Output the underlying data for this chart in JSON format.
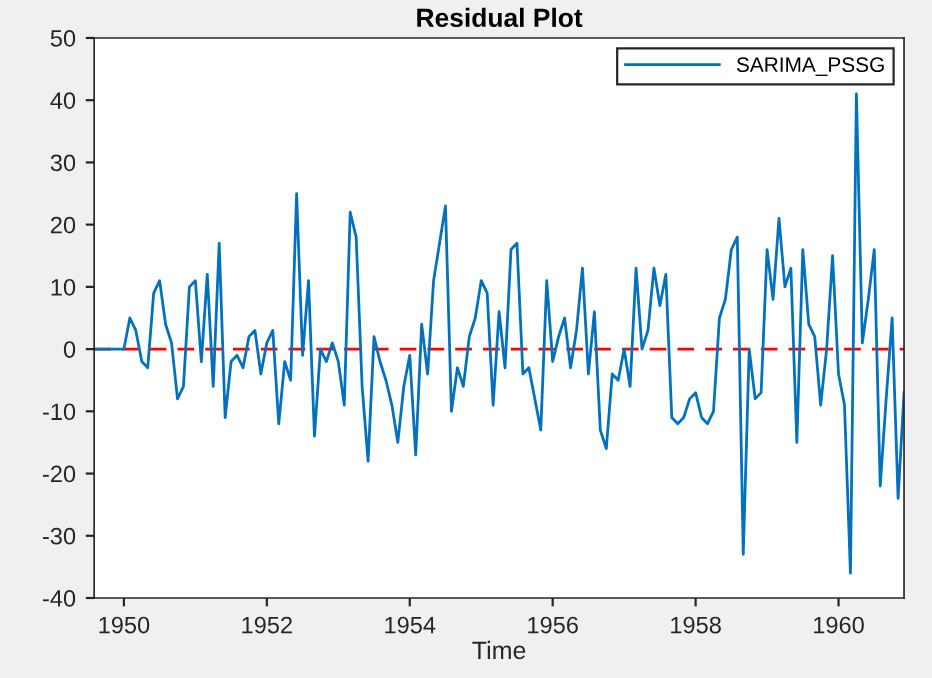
{
  "chart_data": {
    "type": "line",
    "title": "Residual Plot",
    "xlabel": "Time",
    "x": [
      "1949-08",
      "1949-09",
      "1949-10",
      "1949-11",
      "1949-12",
      "1950-01",
      "1950-02",
      "1950-03",
      "1950-04",
      "1950-05",
      "1950-06",
      "1950-07",
      "1950-08",
      "1950-09",
      "1950-10",
      "1950-11",
      "1950-12",
      "1951-01",
      "1951-02",
      "1951-03",
      "1951-04",
      "1951-05",
      "1951-06",
      "1951-07",
      "1951-08",
      "1951-09",
      "1951-10",
      "1951-11",
      "1951-12",
      "1952-01",
      "1952-02",
      "1952-03",
      "1952-04",
      "1952-05",
      "1952-06",
      "1952-07",
      "1952-08",
      "1952-09",
      "1952-10",
      "1952-11",
      "1952-12",
      "1953-01",
      "1953-02",
      "1953-03",
      "1953-04",
      "1953-05",
      "1953-06",
      "1953-07",
      "1953-08",
      "1953-09",
      "1953-10",
      "1953-11",
      "1953-12",
      "1954-01",
      "1954-02",
      "1954-03",
      "1954-04",
      "1954-05",
      "1954-06",
      "1954-07",
      "1954-08",
      "1954-09",
      "1954-10",
      "1954-11",
      "1954-12",
      "1955-01",
      "1955-02",
      "1955-03",
      "1955-04",
      "1955-05",
      "1955-06",
      "1955-07",
      "1955-08",
      "1955-09",
      "1955-10",
      "1955-11",
      "1955-12",
      "1956-01",
      "1956-02",
      "1956-03",
      "1956-04",
      "1956-05",
      "1956-06",
      "1956-07",
      "1956-08",
      "1956-09",
      "1956-10",
      "1956-11",
      "1956-12",
      "1957-01",
      "1957-02",
      "1957-03",
      "1957-04",
      "1957-05",
      "1957-06",
      "1957-07",
      "1957-08",
      "1957-09",
      "1957-10",
      "1957-11",
      "1957-12",
      "1958-01",
      "1958-02",
      "1958-03",
      "1958-04",
      "1958-05",
      "1958-06",
      "1958-07",
      "1958-08",
      "1958-09",
      "1958-10",
      "1958-11",
      "1958-12",
      "1959-01",
      "1959-02",
      "1959-03",
      "1959-04",
      "1959-05",
      "1959-06",
      "1959-07",
      "1959-08",
      "1959-09",
      "1959-10",
      "1959-11",
      "1959-12",
      "1960-01",
      "1960-02",
      "1960-03",
      "1960-04",
      "1960-05",
      "1960-06",
      "1960-07",
      "1960-08",
      "1960-09",
      "1960-10",
      "1960-11",
      "1960-12"
    ],
    "series": [
      {
        "name": "SARIMA_PSSG",
        "color": "#0072bd",
        "values": [
          0,
          0,
          0,
          0,
          0,
          0,
          5,
          3,
          -2,
          -3,
          9,
          11,
          4,
          1,
          -8,
          -6,
          10,
          11,
          -2,
          12,
          -6,
          17,
          -11,
          -2,
          -1,
          -3,
          2,
          3,
          -4,
          1,
          3,
          -12,
          -2,
          -5,
          25,
          -1,
          11,
          -14,
          0,
          -2,
          1,
          -2,
          -9,
          22,
          18,
          -6,
          -18,
          2,
          -2,
          -5,
          -9,
          -15,
          -6,
          -1,
          -17,
          4,
          -4,
          11,
          17,
          23,
          -10,
          -3,
          -6,
          2,
          5,
          11,
          9,
          -9,
          6,
          -3,
          16,
          17,
          -4,
          -3,
          -8,
          -13,
          11,
          -2,
          2,
          5,
          -3,
          3,
          13,
          -4,
          6,
          -13,
          -16,
          -4,
          -5,
          0,
          -6,
          13,
          0,
          3,
          13,
          7,
          12,
          -11,
          -12,
          -11,
          -8,
          -7,
          -11,
          -12,
          -10,
          5,
          8,
          16,
          18,
          -33,
          0,
          -8,
          -7,
          16,
          8,
          21,
          10,
          13,
          -15,
          16,
          4,
          2,
          -9,
          0,
          15,
          -4,
          -9,
          -36,
          41,
          1,
          8,
          16,
          -22,
          -8,
          5,
          -24,
          -7
        ]
      }
    ],
    "xlim": [
      "1949-08",
      "1960-12"
    ],
    "xticks": [
      "1950",
      "1952",
      "1954",
      "1956",
      "1958",
      "1960"
    ],
    "ylim": [
      -40,
      50
    ],
    "yticks": [
      -40,
      -30,
      -20,
      -10,
      0,
      10,
      20,
      30,
      40,
      50
    ],
    "ref_lines": [
      {
        "axis": "y",
        "value": 0,
        "color": "#ff0000",
        "line_style": "dashed"
      }
    ],
    "grid": false,
    "legend": "top right",
    "marker": "none",
    "line_style": "solid"
  }
}
